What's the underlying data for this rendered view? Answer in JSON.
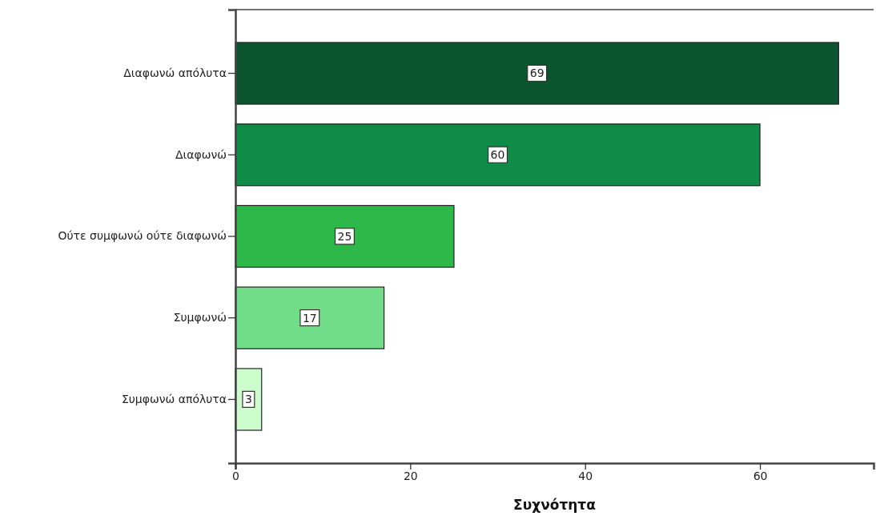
{
  "chart_data": {
    "type": "bar",
    "orientation": "horizontal",
    "categories": [
      "Διαφωνώ απόλυτα",
      "Διαφωνώ",
      "Ούτε συμφωνώ ούτε διαφωνώ",
      "Συμφωνώ",
      "Συμφωνώ απόλυτα"
    ],
    "values": [
      69,
      60,
      25,
      17,
      3
    ],
    "colors": [
      "#0a552d",
      "#0f8c47",
      "#2fb84a",
      "#72dd88",
      "#ccfccc"
    ],
    "xlim": [
      0,
      73
    ],
    "xticks": [
      0,
      20,
      40,
      60
    ],
    "xlabel": "Συχνότητα",
    "data_labels": true
  }
}
